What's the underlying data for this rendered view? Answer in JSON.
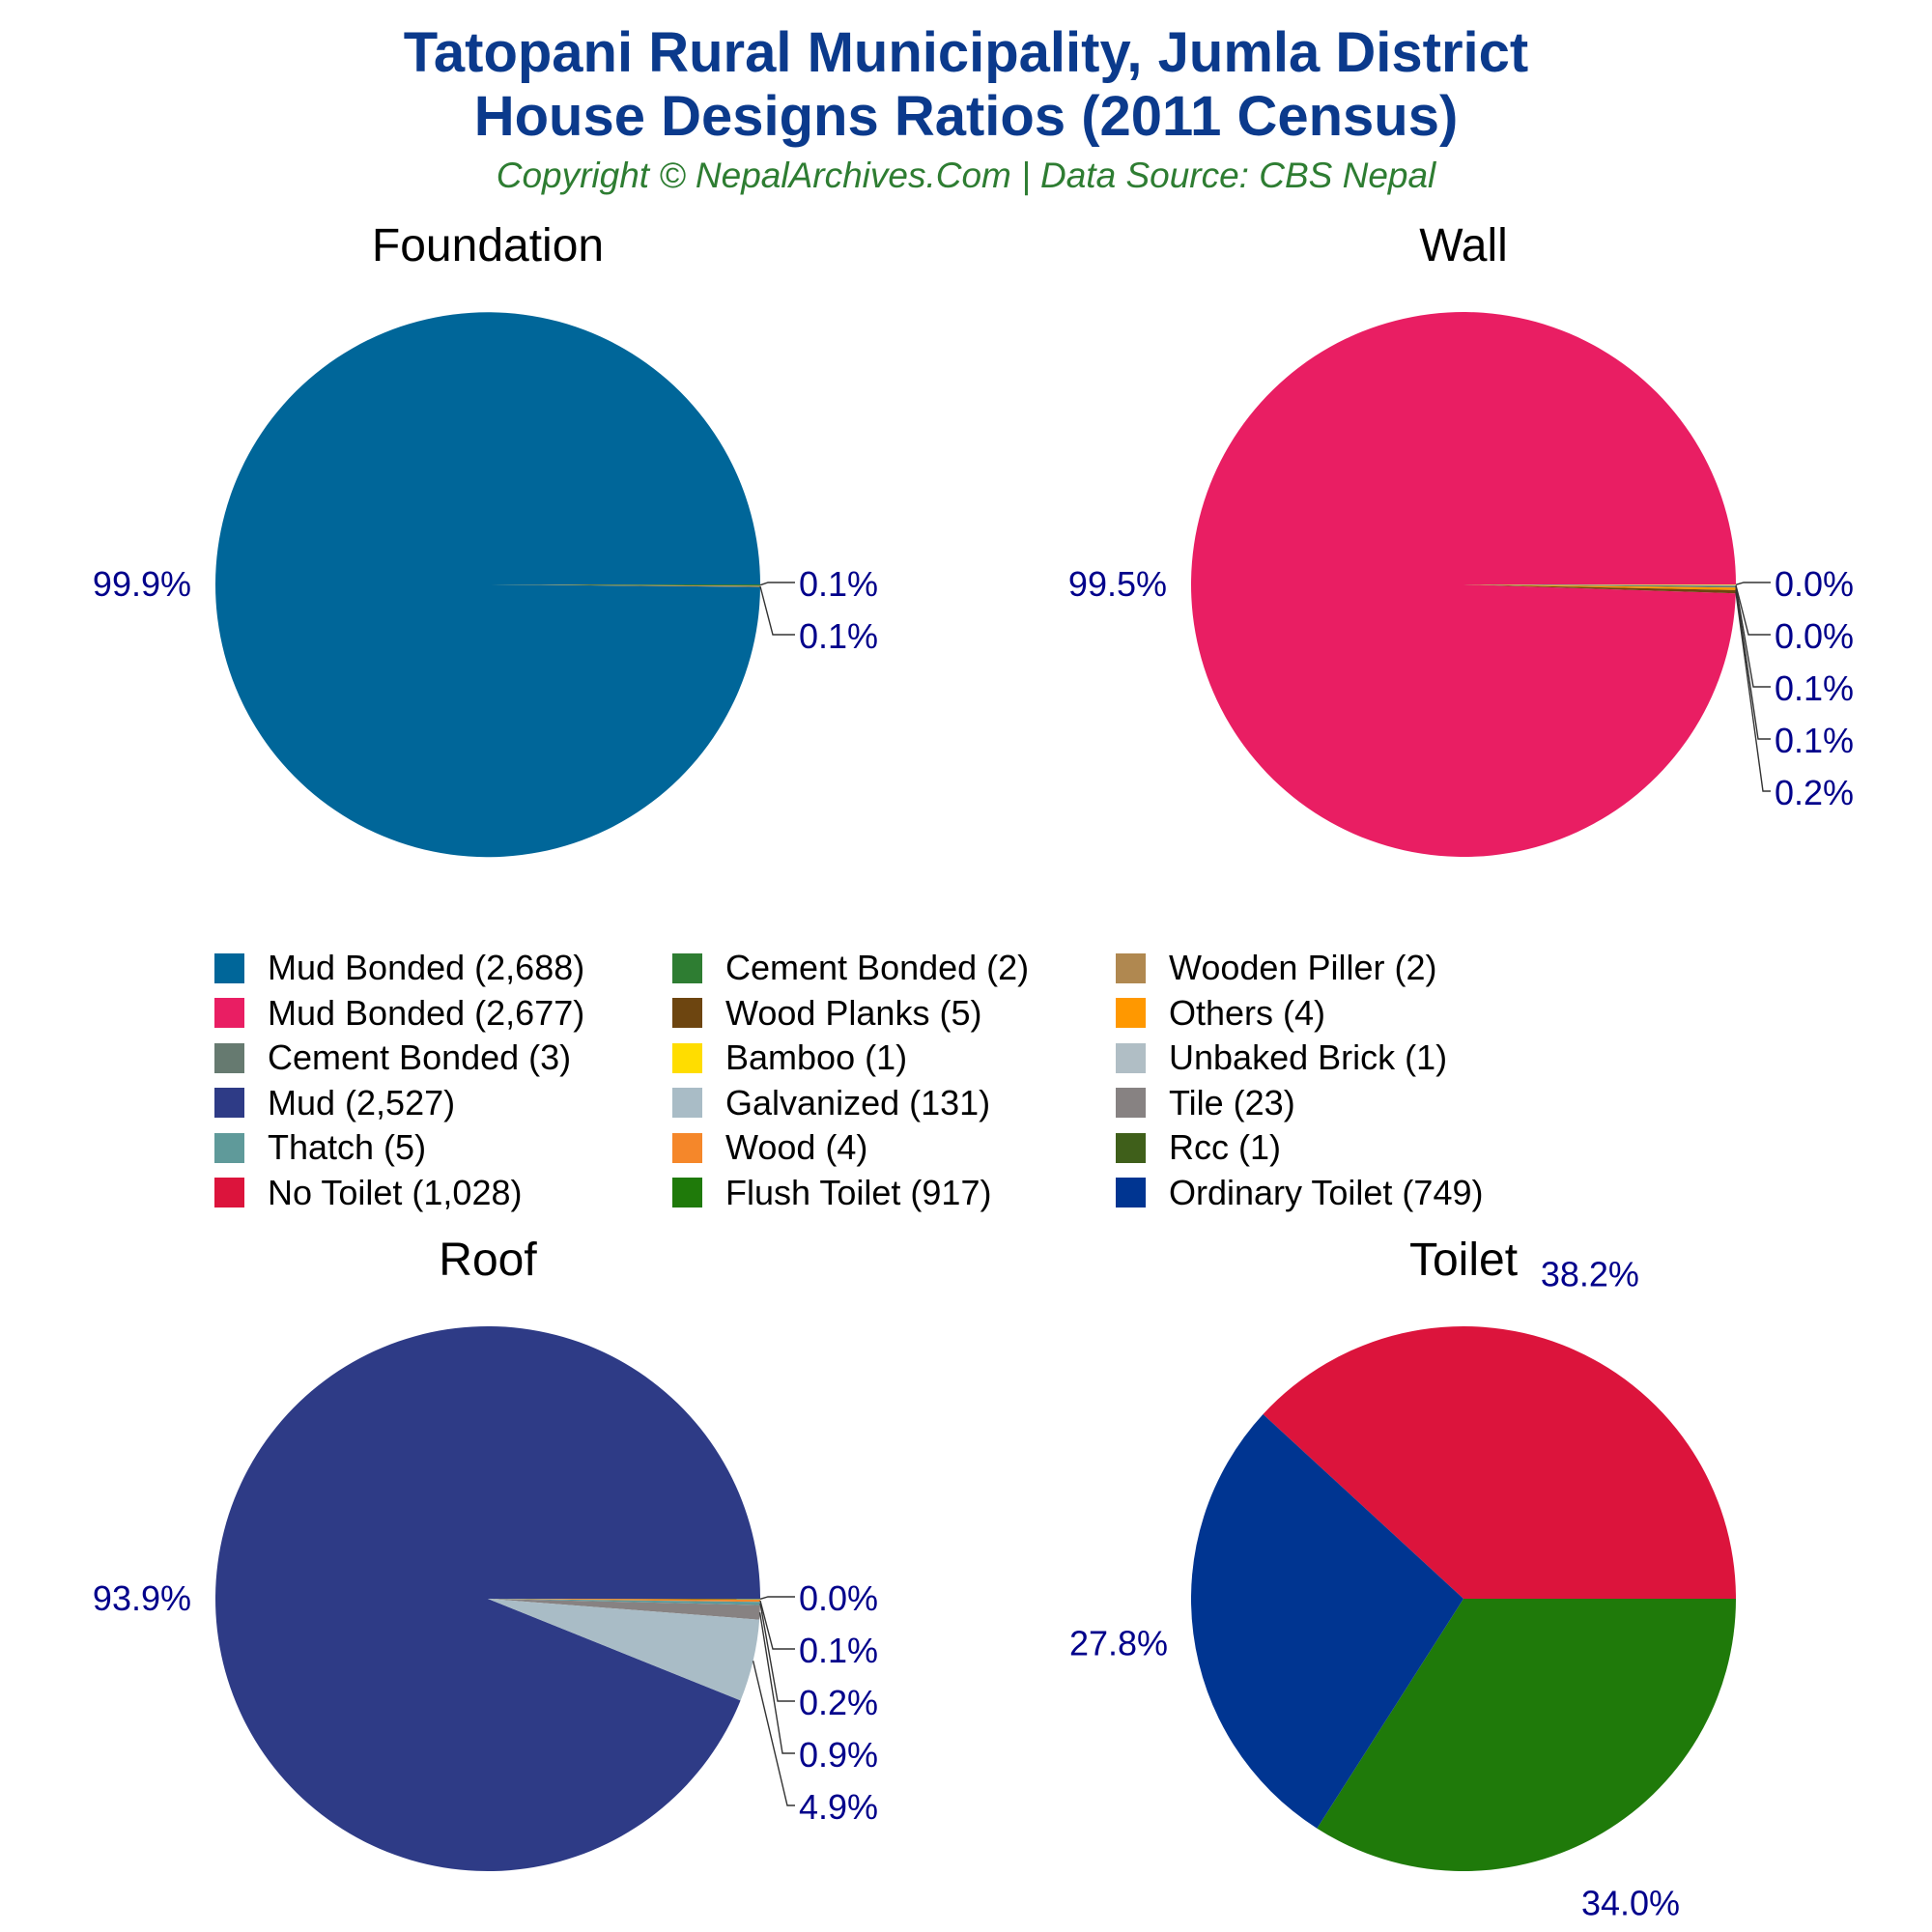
{
  "header": {
    "title_line1": "Tatopani Rural Municipality, Jumla District",
    "title_line2": "House Designs Ratios (2011 Census)",
    "subtitle": "Copyright © NepalArchives.Com | Data Source: CBS Nepal"
  },
  "chart_data": [
    {
      "type": "pie",
      "title": "Foundation",
      "slices": [
        {
          "label": "Mud Bonded",
          "value": 2688,
          "pct_label": "99.9%",
          "color": "#006699"
        },
        {
          "label": "Cement Bonded",
          "value": 2,
          "pct_label": "0.1%",
          "color": "#2e7d32"
        },
        {
          "label": "Wooden Piller",
          "value": 2,
          "pct_label": "0.1%",
          "color": "#b08850"
        }
      ]
    },
    {
      "type": "pie",
      "title": "Wall",
      "slices": [
        {
          "label": "Mud Bonded",
          "value": 2677,
          "pct_label": "99.5%",
          "color": "#e91e63"
        },
        {
          "label": "Bamboo",
          "value": 1,
          "pct_label": "0.0%",
          "color": "#ffdd00"
        },
        {
          "label": "Unbaked Brick",
          "value": 1,
          "pct_label": "0.0%",
          "color": "#b0bec5"
        },
        {
          "label": "Cement Bonded",
          "value": 3,
          "pct_label": "0.1%",
          "color": "#667a70"
        },
        {
          "label": "Others",
          "value": 4,
          "pct_label": "0.1%",
          "color": "#ff9800"
        },
        {
          "label": "Wood Planks",
          "value": 5,
          "pct_label": "0.2%",
          "color": "#6d4510"
        }
      ]
    },
    {
      "type": "pie",
      "title": "Roof",
      "slices": [
        {
          "label": "Mud",
          "value": 2527,
          "pct_label": "93.9%",
          "color": "#2e3b86"
        },
        {
          "label": "Rcc",
          "value": 1,
          "pct_label": "0.0%",
          "color": "#3f5f1a"
        },
        {
          "label": "Wood",
          "value": 4,
          "pct_label": "0.1%",
          "color": "#f5872a"
        },
        {
          "label": "Thatch",
          "value": 5,
          "pct_label": "0.2%",
          "color": "#5f9a9a"
        },
        {
          "label": "Tile",
          "value": 23,
          "pct_label": "0.9%",
          "color": "#878282"
        },
        {
          "label": "Galvanized",
          "value": 131,
          "pct_label": "4.9%",
          "color": "#a9bcc6"
        }
      ]
    },
    {
      "type": "pie",
      "title": "Toilet",
      "slices": [
        {
          "label": "No Toilet",
          "value": 1028,
          "pct_label": "38.2%",
          "color": "#dc143c"
        },
        {
          "label": "Flush Toilet",
          "value": 917,
          "pct_label": "34.0%",
          "color": "#1f7a0a"
        },
        {
          "label": "Ordinary Toilet",
          "value": 749,
          "pct_label": "27.8%",
          "color": "#003591"
        }
      ]
    }
  ],
  "legend": [
    {
      "label": "Mud Bonded (2,688)",
      "color": "#006699"
    },
    {
      "label": "Mud Bonded (2,677)",
      "color": "#e91e63"
    },
    {
      "label": "Cement Bonded (3)",
      "color": "#667a70"
    },
    {
      "label": "Mud (2,527)",
      "color": "#2e3b86"
    },
    {
      "label": "Thatch (5)",
      "color": "#5f9a9a"
    },
    {
      "label": "No Toilet (1,028)",
      "color": "#dc143c"
    },
    {
      "label": "Cement Bonded (2)",
      "color": "#2e7d32"
    },
    {
      "label": "Wood Planks (5)",
      "color": "#6d4510"
    },
    {
      "label": "Bamboo (1)",
      "color": "#ffdd00"
    },
    {
      "label": "Galvanized (131)",
      "color": "#a9bcc6"
    },
    {
      "label": "Wood (4)",
      "color": "#f5872a"
    },
    {
      "label": "Flush Toilet (917)",
      "color": "#1f7a0a"
    },
    {
      "label": "Wooden Piller (2)",
      "color": "#b08850"
    },
    {
      "label": "Others (4)",
      "color": "#ff9800"
    },
    {
      "label": "Unbaked Brick (1)",
      "color": "#b0bec5"
    },
    {
      "label": "Tile (23)",
      "color": "#878282"
    },
    {
      "label": "Rcc (1)",
      "color": "#3f5f1a"
    },
    {
      "label": "Ordinary Toilet (749)",
      "color": "#003591"
    }
  ]
}
